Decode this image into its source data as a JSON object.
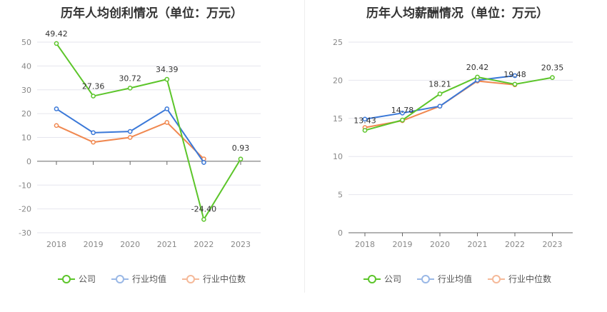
{
  "chart_data": [
    {
      "type": "line",
      "title": "历年人均创利情况（单位：万元）",
      "categories": [
        "2018",
        "2019",
        "2020",
        "2021",
        "2022",
        "2023"
      ],
      "ylim": [
        -30,
        50
      ],
      "yticks": [
        50,
        40,
        30,
        20,
        10,
        0,
        -10,
        -20,
        -30
      ],
      "grid": true,
      "legend_position": "bottom",
      "series": [
        {
          "name": "公司",
          "color": "#5cc52a",
          "values": [
            49.42,
            27.36,
            30.72,
            34.39,
            -24.4,
            0.93
          ],
          "labels": [
            "49.42",
            "27.36",
            "30.72",
            "34.39",
            "-24.40",
            "0.93"
          ]
        },
        {
          "name": "行业均值",
          "color": "#3a78d8",
          "values": [
            22.0,
            12.0,
            12.5,
            22.0,
            -0.5,
            null
          ]
        },
        {
          "name": "行业中位数",
          "color": "#f08850",
          "values": [
            15.0,
            8.0,
            10.0,
            16.3,
            1.0,
            null
          ]
        }
      ]
    },
    {
      "type": "line",
      "title": "历年人均薪酬情况（单位：万元）",
      "categories": [
        "2018",
        "2019",
        "2020",
        "2021",
        "2022",
        "2023"
      ],
      "ylim": [
        0,
        25
      ],
      "yticks": [
        25,
        20,
        15,
        10,
        5,
        0
      ],
      "grid": true,
      "legend_position": "bottom",
      "series": [
        {
          "name": "公司",
          "color": "#5cc52a",
          "values": [
            13.43,
            14.78,
            18.21,
            20.42,
            19.48,
            20.35
          ],
          "labels": [
            "13.43",
            "14.78",
            "18.21",
            "20.42",
            "19.48",
            "20.35"
          ]
        },
        {
          "name": "行业均值",
          "color": "#3a78d8",
          "values": [
            14.9,
            15.7,
            16.6,
            20.0,
            20.6,
            null
          ]
        },
        {
          "name": "行业中位数",
          "color": "#f08850",
          "values": [
            13.8,
            14.7,
            16.6,
            19.9,
            19.4,
            null
          ]
        }
      ]
    }
  ]
}
